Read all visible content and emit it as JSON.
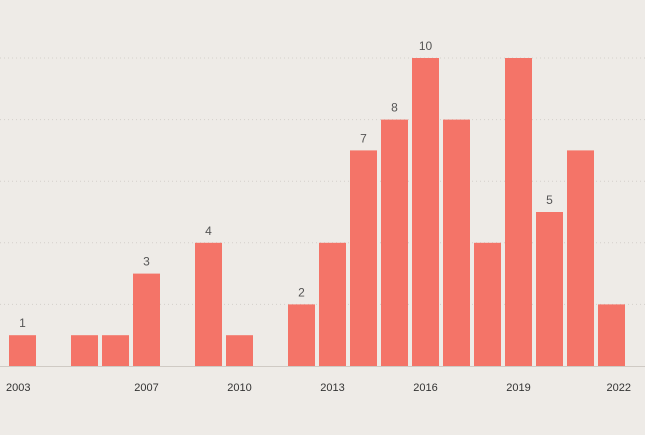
{
  "chart_data": {
    "type": "bar",
    "categories": [
      "2003",
      "2004",
      "2005",
      "2006",
      "2007",
      "2008",
      "2009",
      "2010",
      "2011",
      "2012",
      "2013",
      "2014",
      "2015",
      "2016",
      "2017",
      "2018",
      "2019",
      "2020",
      "2021",
      "2022"
    ],
    "values": [
      1,
      0,
      1,
      1,
      3,
      0,
      4,
      1,
      0,
      2,
      4,
      7,
      8,
      10,
      8,
      4,
      10,
      5,
      7,
      2
    ],
    "x_tick_labels": [
      "2003",
      "2007",
      "2010",
      "2013",
      "2016",
      "2019",
      "2022"
    ],
    "data_labels": [
      {
        "category": "2003",
        "text": "1"
      },
      {
        "category": "2007",
        "text": "3"
      },
      {
        "category": "2009",
        "text": "4"
      },
      {
        "category": "2012",
        "text": "2"
      },
      {
        "category": "2014",
        "text": "7"
      },
      {
        "category": "2015",
        "text": "8"
      },
      {
        "category": "2016",
        "text": "10"
      },
      {
        "category": "2020",
        "text": "5"
      }
    ],
    "title": "",
    "xlabel": "",
    "ylabel": "",
    "ylim": [
      0,
      10
    ],
    "grid": true,
    "grid_style": "dotted horizontal",
    "bar_color": "#f47468",
    "background_color": "#eeebe7",
    "grid_color": "#d4d0cb",
    "axis_color": "#cfcac4",
    "text_color": "#333333"
  }
}
